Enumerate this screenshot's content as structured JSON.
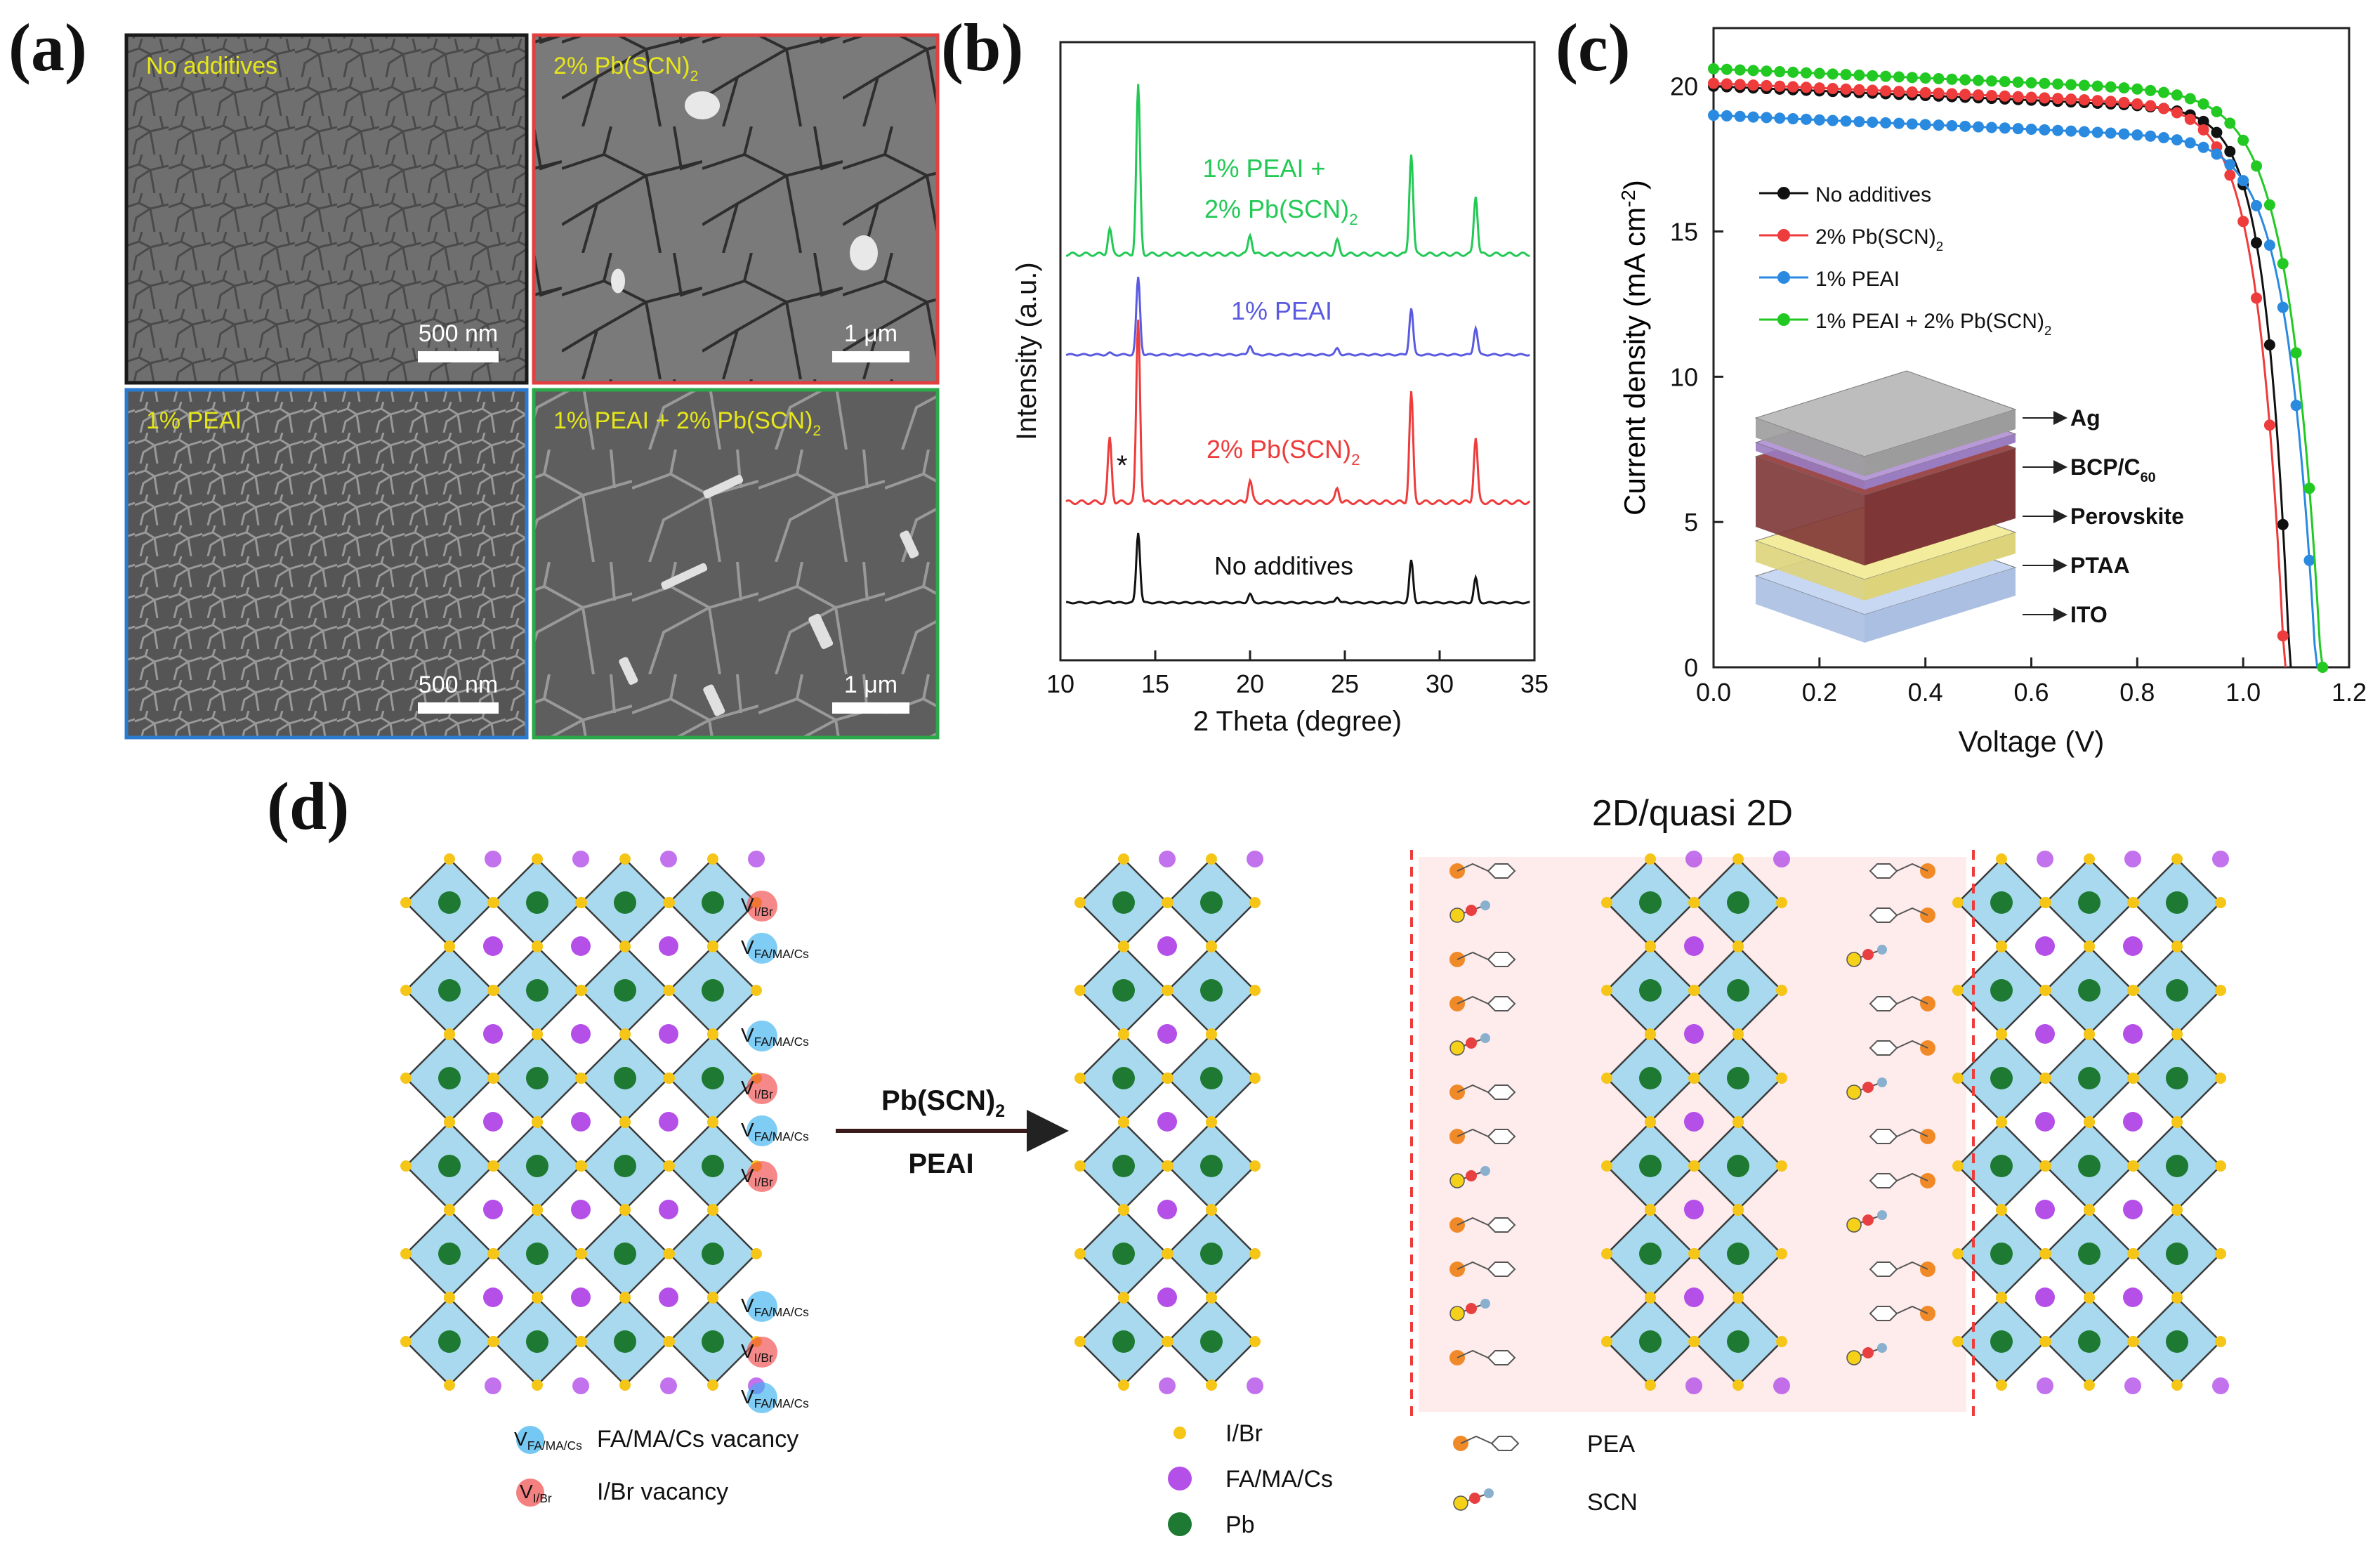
{
  "panels": {
    "a": "(a)",
    "b": "(b)",
    "c": "(c)",
    "d": "(d)"
  },
  "sem": {
    "tiles": [
      {
        "label": "No additives",
        "label_sub": "",
        "scale": "500 nm",
        "border": "#1a1a1a"
      },
      {
        "label": "2% Pb(SCN)",
        "label_sub": "2",
        "scale": "1 μm",
        "border": "#e04040"
      },
      {
        "label": "1% PEAI",
        "label_sub": "",
        "scale": "500 nm",
        "border": "#2a7ad0"
      },
      {
        "label": "1% PEAI + 2% Pb(SCN)",
        "label_sub": "2",
        "scale": "1 μm",
        "border": "#2aa84a"
      }
    ],
    "label_color": "#e6e61a"
  },
  "xrd": {
    "xlabel": "2 Theta (degree)",
    "ylabel": "Intensity (a.u.)",
    "xticks": [
      "10",
      "15",
      "20",
      "25",
      "30",
      "35"
    ],
    "star": "*",
    "traces": [
      {
        "label1": "1% PEAI +",
        "label2": "2% Pb(SCN)",
        "label2_sub": "2",
        "color": "#22c955"
      },
      {
        "label1": "1% PEAI",
        "color": "#5a5ae0"
      },
      {
        "label1": "2% Pb(SCN)",
        "label1_sub": "2",
        "color": "#ee3b3b"
      },
      {
        "label1": "No additives",
        "color": "#111111"
      }
    ]
  },
  "chart_data": {
    "type": "line",
    "xlabel": "Voltage (V)",
    "ylabel": "Current density (mA cm",
    "ylabel_sup": "-2",
    "ylabel_end": ")",
    "xlim": [
      0,
      1.2
    ],
    "ylim": [
      0,
      22
    ],
    "xticks": [
      "0.0",
      "0.2",
      "0.4",
      "0.6",
      "0.8",
      "1.0",
      "1.2"
    ],
    "yticks": [
      "0",
      "5",
      "10",
      "15",
      "20"
    ],
    "series": [
      {
        "name": "No additives",
        "name_sub": "",
        "color": "#111111",
        "jsc": 20.0,
        "voc": 1.09
      },
      {
        "name": "2% Pb(SCN)",
        "name_sub": "2",
        "color": "#ee3b3b",
        "jsc": 20.1,
        "voc": 1.08
      },
      {
        "name": "1% PEAI",
        "name_sub": "",
        "color": "#2a8ae0",
        "jsc": 19.0,
        "voc": 1.14
      },
      {
        "name": "1% PEAI + 2% Pb(SCN)",
        "name_sub": "2",
        "color": "#22c922",
        "jsc": 20.6,
        "voc": 1.15
      }
    ]
  },
  "device": {
    "layers": [
      {
        "label": "Ag",
        "label_sub": ""
      },
      {
        "label": "BCP/C",
        "label_sub": "60"
      },
      {
        "label": "Perovskite",
        "label_sub": ""
      },
      {
        "label": "PTAA",
        "label_sub": ""
      },
      {
        "label": "ITO",
        "label_sub": ""
      }
    ]
  },
  "schematic": {
    "title": "2D/quasi 2D",
    "arrow_top": "Pb(SCN)",
    "arrow_top_sub": "2",
    "arrow_bottom": "PEAI",
    "vac_fa": "V",
    "vac_fa_sub": "FA/MA/Cs",
    "vac_ibr": "V",
    "vac_ibr_sub": "I/Br",
    "legend_vac": [
      {
        "label": "FA/MA/Cs vacancy"
      },
      {
        "label": "I/Br vacancy"
      }
    ],
    "legend_atoms": [
      {
        "label": "I/Br",
        "color": "#f5c518"
      },
      {
        "label": "FA/MA/Cs",
        "color": "#b44fe8"
      },
      {
        "label": "Pb",
        "color": "#1e7a32"
      }
    ],
    "legend_mol": [
      {
        "label": "PEA"
      },
      {
        "label": "SCN"
      }
    ]
  }
}
